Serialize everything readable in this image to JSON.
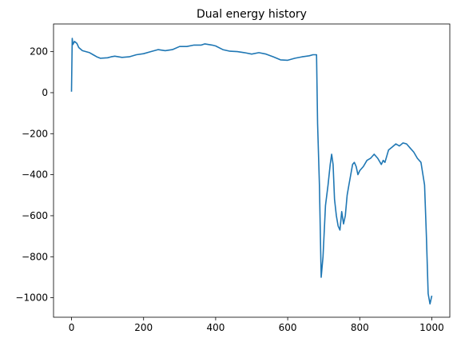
{
  "chart_data": {
    "type": "line",
    "title": "Dual energy history",
    "x": [
      0,
      2,
      4,
      8,
      15,
      20,
      30,
      50,
      60,
      70,
      80,
      100,
      110,
      120,
      140,
      160,
      180,
      200,
      220,
      240,
      260,
      280,
      300,
      320,
      340,
      360,
      370,
      390,
      400,
      420,
      440,
      460,
      480,
      500,
      520,
      540,
      560,
      580,
      600,
      620,
      640,
      660,
      670,
      680,
      683,
      688,
      693,
      698,
      705,
      712,
      718,
      722,
      726,
      730,
      735,
      740,
      745,
      750,
      755,
      760,
      765,
      770,
      775,
      780,
      785,
      790,
      795,
      800,
      810,
      820,
      830,
      840,
      850,
      860,
      865,
      870,
      880,
      890,
      900,
      910,
      920,
      930,
      940,
      950,
      960,
      970,
      980,
      985,
      990,
      995,
      1000
    ],
    "series": [
      {
        "name": "Dual energy",
        "color": "#1f77b4",
        "values": [
          5,
          265,
          235,
          250,
          240,
          220,
          205,
          195,
          185,
          175,
          168,
          170,
          175,
          178,
          172,
          175,
          185,
          190,
          200,
          210,
          205,
          210,
          225,
          225,
          232,
          232,
          238,
          232,
          228,
          210,
          202,
          200,
          195,
          188,
          195,
          188,
          175,
          160,
          158,
          168,
          175,
          180,
          185,
          185,
          -150,
          -450,
          -900,
          -800,
          -550,
          -450,
          -350,
          -300,
          -350,
          -520,
          -600,
          -650,
          -670,
          -580,
          -640,
          -600,
          -500,
          -450,
          -400,
          -350,
          -340,
          -360,
          -400,
          -380,
          -360,
          -330,
          -320,
          -300,
          -320,
          -350,
          -330,
          -340,
          -280,
          -265,
          -250,
          -260,
          -245,
          -250,
          -270,
          -290,
          -320,
          -340,
          -450,
          -700,
          -980,
          -1030,
          -990
        ]
      }
    ],
    "xlim": [
      -50,
      1050
    ],
    "ylim": [
      -1095,
      335
    ],
    "xticks": [
      0,
      200,
      400,
      600,
      800,
      1000
    ],
    "yticks": [
      {
        "value": -1000,
        "label": "−1000"
      },
      {
        "value": -800,
        "label": "−800"
      },
      {
        "value": -600,
        "label": "−600"
      },
      {
        "value": -400,
        "label": "−400"
      },
      {
        "value": -200,
        "label": "−200"
      },
      0,
      200
    ],
    "grid": false
  }
}
